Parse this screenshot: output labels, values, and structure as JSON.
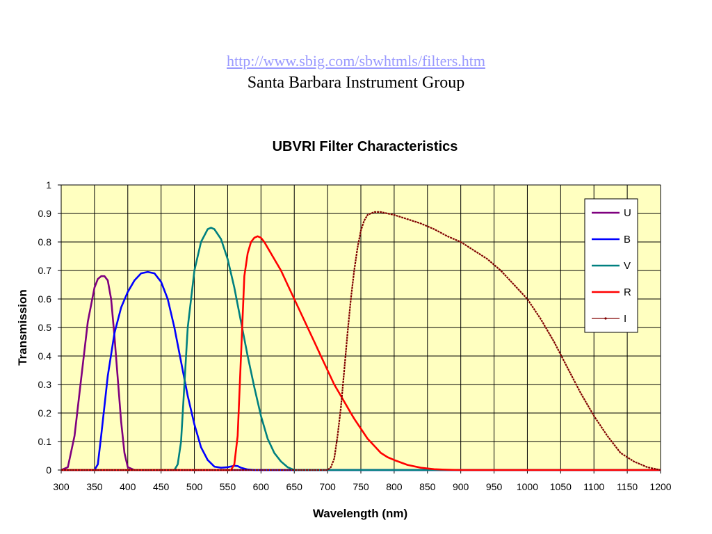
{
  "header": {
    "link": "http://www.sbig.com/sbwhtmls/filters.htm",
    "org": "Santa Barbara Instrument Group"
  },
  "chart_data": {
    "type": "line",
    "title": "UBVRI Filter Characteristics",
    "xlabel": "Wavelength (nm)",
    "ylabel": "Transmission",
    "xlim": [
      300,
      1200
    ],
    "ylim": [
      0,
      1
    ],
    "xticks": [
      300,
      350,
      400,
      450,
      500,
      550,
      600,
      650,
      700,
      750,
      800,
      850,
      900,
      950,
      1000,
      1050,
      1100,
      1150,
      1200
    ],
    "yticks": [
      0,
      0.1,
      0.2,
      0.3,
      0.4,
      0.5,
      0.6,
      0.7,
      0.8,
      0.9,
      1
    ],
    "ytick_labels": [
      "0",
      "0.1",
      "0.2",
      "0.3",
      "0.4",
      "0.5",
      "0.6",
      "0.7",
      "0.8",
      "0.9",
      "1"
    ],
    "grid": true,
    "legend": "top-right",
    "background": "#ffffc0",
    "series": [
      {
        "name": "U",
        "color": "#7f007f",
        "x": [
          300,
          310,
          320,
          330,
          340,
          350,
          355,
          360,
          365,
          370,
          375,
          380,
          385,
          390,
          395,
          400,
          410,
          700,
          1200
        ],
        "y": [
          0,
          0.01,
          0.12,
          0.32,
          0.52,
          0.64,
          0.67,
          0.68,
          0.68,
          0.665,
          0.6,
          0.47,
          0.32,
          0.17,
          0.06,
          0.01,
          0,
          0,
          0
        ]
      },
      {
        "name": "B",
        "color": "#0000ff",
        "x": [
          300,
          350,
          355,
          360,
          370,
          380,
          390,
          400,
          410,
          420,
          430,
          440,
          450,
          460,
          470,
          480,
          490,
          500,
          510,
          520,
          530,
          540,
          550,
          560,
          565,
          570,
          580,
          590,
          700,
          1200
        ],
        "y": [
          0,
          0,
          0.02,
          0.12,
          0.33,
          0.48,
          0.57,
          0.625,
          0.665,
          0.69,
          0.695,
          0.69,
          0.66,
          0.6,
          0.5,
          0.38,
          0.26,
          0.16,
          0.08,
          0.035,
          0.012,
          0.008,
          0.01,
          0.015,
          0.014,
          0.008,
          0.002,
          0,
          0,
          0
        ]
      },
      {
        "name": "V",
        "color": "#008080",
        "x": [
          300,
          470,
          475,
          480,
          485,
          490,
          500,
          510,
          520,
          525,
          530,
          540,
          550,
          560,
          570,
          580,
          590,
          600,
          610,
          620,
          630,
          640,
          650,
          700,
          1200
        ],
        "y": [
          0,
          0,
          0.02,
          0.1,
          0.3,
          0.5,
          0.7,
          0.8,
          0.845,
          0.85,
          0.845,
          0.81,
          0.74,
          0.64,
          0.52,
          0.4,
          0.29,
          0.19,
          0.11,
          0.06,
          0.03,
          0.01,
          0,
          0,
          0
        ]
      },
      {
        "name": "R",
        "color": "#ff0000",
        "x": [
          300,
          555,
          560,
          565,
          570,
          575,
          580,
          585,
          590,
          595,
          600,
          605,
          610,
          620,
          630,
          640,
          650,
          660,
          670,
          680,
          690,
          700,
          710,
          720,
          730,
          740,
          750,
          760,
          770,
          780,
          790,
          800,
          820,
          840,
          860,
          880,
          900,
          1200
        ],
        "y": [
          0,
          0,
          0.02,
          0.12,
          0.4,
          0.68,
          0.76,
          0.8,
          0.815,
          0.82,
          0.815,
          0.8,
          0.78,
          0.74,
          0.7,
          0.65,
          0.6,
          0.55,
          0.5,
          0.45,
          0.4,
          0.35,
          0.3,
          0.26,
          0.22,
          0.18,
          0.145,
          0.11,
          0.085,
          0.06,
          0.045,
          0.035,
          0.018,
          0.008,
          0.003,
          0.001,
          0,
          0
        ]
      },
      {
        "name": "I",
        "color": "#800000",
        "x": [
          300,
          700,
          705,
          710,
          715,
          720,
          725,
          730,
          735,
          740,
          745,
          750,
          755,
          760,
          770,
          780,
          790,
          800,
          820,
          840,
          860,
          880,
          900,
          920,
          940,
          960,
          980,
          1000,
          1020,
          1040,
          1060,
          1080,
          1100,
          1120,
          1140,
          1160,
          1180,
          1200
        ],
        "y": [
          0,
          0,
          0.01,
          0.04,
          0.12,
          0.22,
          0.35,
          0.48,
          0.6,
          0.7,
          0.78,
          0.84,
          0.875,
          0.895,
          0.905,
          0.905,
          0.9,
          0.895,
          0.88,
          0.865,
          0.845,
          0.82,
          0.8,
          0.77,
          0.74,
          0.7,
          0.65,
          0.6,
          0.53,
          0.45,
          0.36,
          0.27,
          0.19,
          0.12,
          0.06,
          0.03,
          0.01,
          0
        ]
      }
    ]
  }
}
